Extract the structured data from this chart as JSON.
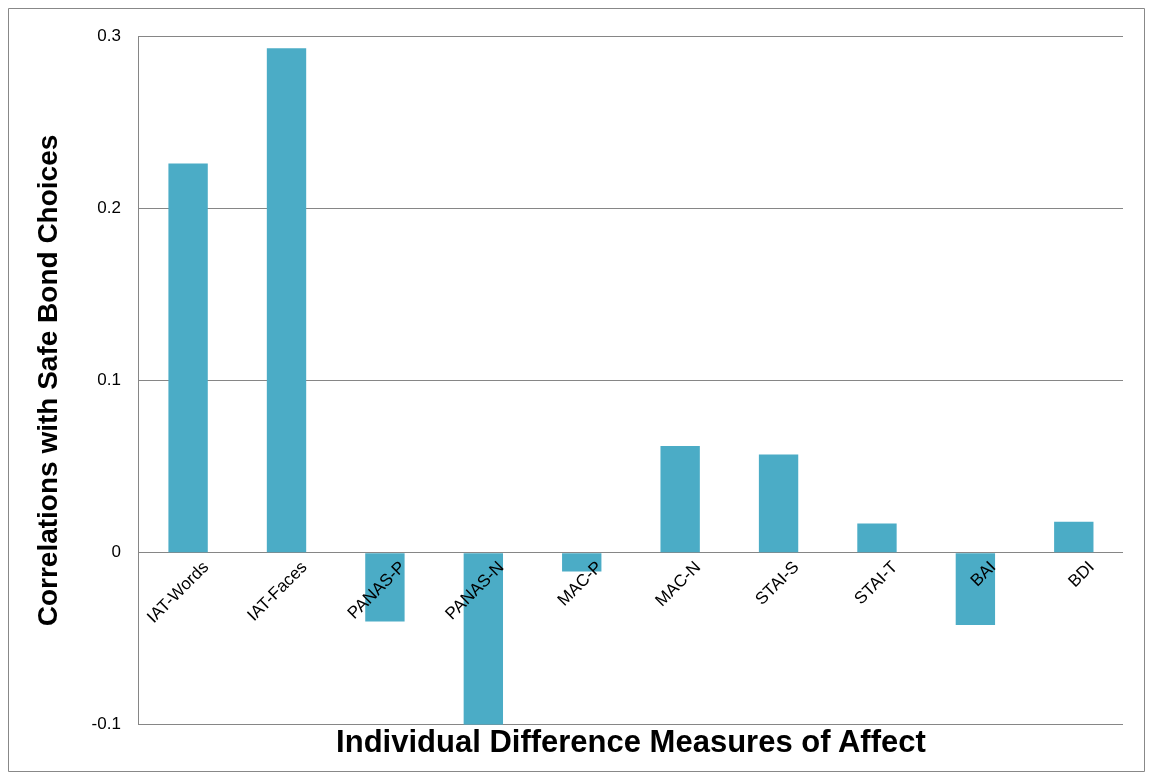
{
  "chart_data": {
    "type": "bar",
    "xlabel": "Individual Difference Measures of Affect",
    "ylabel": "Correlations with Safe Bond Choices",
    "categories": [
      "IAT-Words",
      "IAT-Faces",
      "PANAS-P",
      "PANAS-N",
      "MAC-P",
      "MAC-N",
      "STAI-S",
      "STAI-T",
      "BAI",
      "BDI"
    ],
    "values": [
      0.226,
      0.293,
      -0.04,
      -0.1,
      -0.011,
      0.062,
      0.057,
      0.017,
      -0.042,
      0.018
    ],
    "color": "#4bacc6",
    "ylim": [
      -0.1,
      0.3
    ],
    "yticks": [
      -0.1,
      0,
      0.1,
      0.2,
      0.3
    ],
    "grid": "y",
    "legend": false
  }
}
